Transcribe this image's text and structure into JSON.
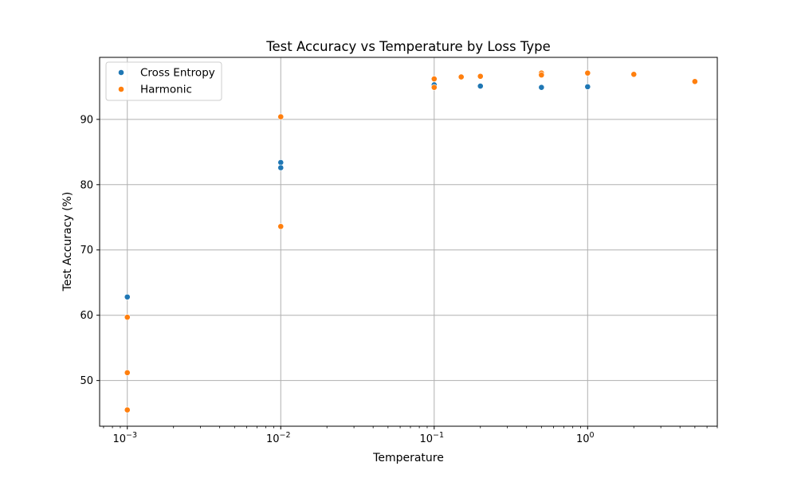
{
  "chart_data": {
    "type": "scatter",
    "title": "Test Accuracy vs Temperature by Loss Type",
    "xlabel": "Temperature",
    "ylabel": "Test Accuracy (%)",
    "x_scale": "log",
    "xlim": [
      0.00066,
      7.0
    ],
    "ylim": [
      43.0,
      99.5
    ],
    "x_ticks": [
      {
        "value": 0.001,
        "base": "10",
        "exp": "−3"
      },
      {
        "value": 0.01,
        "base": "10",
        "exp": "−2"
      },
      {
        "value": 0.1,
        "base": "10",
        "exp": "−1"
      },
      {
        "value": 1,
        "base": "10",
        "exp": "0"
      }
    ],
    "y_ticks": [
      50,
      60,
      70,
      80,
      90
    ],
    "grid": true,
    "legend_position": "top-left",
    "series": [
      {
        "name": "Cross Entropy",
        "color": "#1f77b4",
        "points": [
          {
            "x": 0.001,
            "y": 62.8
          },
          {
            "x": 0.01,
            "y": 83.4
          },
          {
            "x": 0.01,
            "y": 82.6
          },
          {
            "x": 0.1,
            "y": 95.3
          },
          {
            "x": 0.2,
            "y": 95.1
          },
          {
            "x": 0.5,
            "y": 94.9
          },
          {
            "x": 1.0,
            "y": 95.0
          }
        ]
      },
      {
        "name": "Harmonic",
        "color": "#ff7f0e",
        "points": [
          {
            "x": 0.001,
            "y": 59.7
          },
          {
            "x": 0.001,
            "y": 51.2
          },
          {
            "x": 0.001,
            "y": 45.5
          },
          {
            "x": 0.01,
            "y": 90.4
          },
          {
            "x": 0.01,
            "y": 73.6
          },
          {
            "x": 0.1,
            "y": 96.2
          },
          {
            "x": 0.1,
            "y": 94.9
          },
          {
            "x": 0.15,
            "y": 96.5
          },
          {
            "x": 0.2,
            "y": 96.6
          },
          {
            "x": 0.5,
            "y": 97.1
          },
          {
            "x": 0.5,
            "y": 96.8
          },
          {
            "x": 1.0,
            "y": 97.1
          },
          {
            "x": 2.0,
            "y": 96.9
          },
          {
            "x": 5.0,
            "y": 95.8
          }
        ]
      }
    ]
  }
}
